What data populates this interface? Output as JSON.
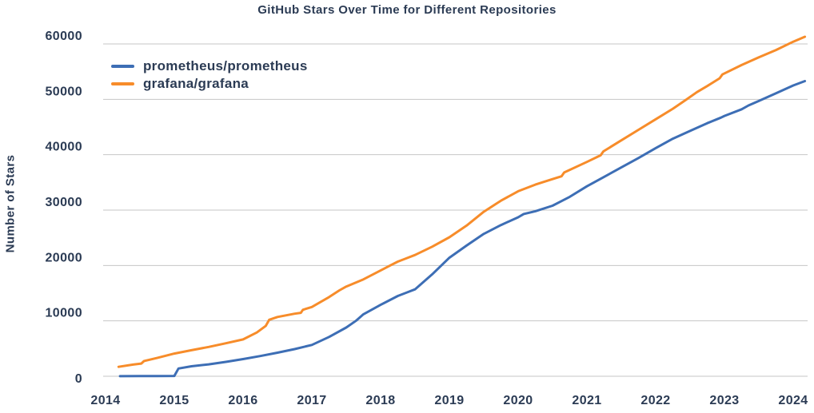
{
  "chart_data": {
    "type": "line",
    "title": "GitHub Stars Over Time for Different Repositories",
    "xlabel": "",
    "ylabel": "Number of Stars",
    "x_range": [
      2014,
      2024.2
    ],
    "y_range": [
      0,
      60000
    ],
    "xticks": [
      2014,
      2015,
      2016,
      2017,
      2018,
      2019,
      2020,
      2021,
      2022,
      2023,
      2024
    ],
    "yticks": [
      0,
      10000,
      20000,
      30000,
      40000,
      50000,
      60000
    ],
    "grid": "horizontal-only",
    "grid_color": "#c6c6c6",
    "text_color": "#2b3b54",
    "background_color": "#ffffff",
    "legend_position": "top-left-inside",
    "series": [
      {
        "name": "prometheus/prometheus",
        "color": "#3d6eb5",
        "points": [
          [
            2014.21,
            20
          ],
          [
            2014.5,
            35
          ],
          [
            2014.75,
            45
          ],
          [
            2015.0,
            60
          ],
          [
            2015.06,
            1400
          ],
          [
            2015.25,
            1800
          ],
          [
            2015.5,
            2150
          ],
          [
            2015.75,
            2600
          ],
          [
            2016.0,
            3100
          ],
          [
            2016.25,
            3650
          ],
          [
            2016.5,
            4250
          ],
          [
            2016.75,
            4900
          ],
          [
            2017.0,
            5650
          ],
          [
            2017.25,
            7100
          ],
          [
            2017.5,
            8800
          ],
          [
            2017.64,
            10000
          ],
          [
            2017.75,
            11200
          ],
          [
            2018.0,
            12900
          ],
          [
            2018.25,
            14500
          ],
          [
            2018.5,
            15700
          ],
          [
            2018.75,
            18400
          ],
          [
            2019.0,
            21400
          ],
          [
            2019.25,
            23600
          ],
          [
            2019.5,
            25700
          ],
          [
            2019.75,
            27300
          ],
          [
            2020.0,
            28700
          ],
          [
            2020.08,
            29300
          ],
          [
            2020.25,
            29800
          ],
          [
            2020.5,
            30800
          ],
          [
            2020.75,
            32400
          ],
          [
            2021.0,
            34300
          ],
          [
            2021.25,
            36000
          ],
          [
            2021.5,
            37700
          ],
          [
            2021.75,
            39400
          ],
          [
            2022.0,
            41200
          ],
          [
            2022.25,
            42900
          ],
          [
            2022.5,
            44300
          ],
          [
            2022.75,
            45700
          ],
          [
            2022.95,
            46700
          ],
          [
            2023.0,
            47000
          ],
          [
            2023.25,
            48200
          ],
          [
            2023.35,
            48900
          ],
          [
            2023.5,
            49700
          ],
          [
            2023.75,
            51100
          ],
          [
            2024.0,
            52500
          ],
          [
            2024.17,
            53300
          ]
        ]
      },
      {
        "name": "grafana/grafana",
        "color": "#f78c2a",
        "points": [
          [
            2014.19,
            1700
          ],
          [
            2014.4,
            2100
          ],
          [
            2014.52,
            2300
          ],
          [
            2014.56,
            2750
          ],
          [
            2014.75,
            3300
          ],
          [
            2015.0,
            4100
          ],
          [
            2015.25,
            4700
          ],
          [
            2015.5,
            5300
          ],
          [
            2015.75,
            5950
          ],
          [
            2016.0,
            6650
          ],
          [
            2016.2,
            7900
          ],
          [
            2016.33,
            9100
          ],
          [
            2016.38,
            10200
          ],
          [
            2016.5,
            10700
          ],
          [
            2016.75,
            11300
          ],
          [
            2016.84,
            11450
          ],
          [
            2016.87,
            12000
          ],
          [
            2017.0,
            12500
          ],
          [
            2017.25,
            14300
          ],
          [
            2017.4,
            15500
          ],
          [
            2017.5,
            16200
          ],
          [
            2017.75,
            17500
          ],
          [
            2018.0,
            19100
          ],
          [
            2018.14,
            20000
          ],
          [
            2018.25,
            20700
          ],
          [
            2018.5,
            21900
          ],
          [
            2018.75,
            23400
          ],
          [
            2019.0,
            25100
          ],
          [
            2019.25,
            27200
          ],
          [
            2019.5,
            29700
          ],
          [
            2019.75,
            31700
          ],
          [
            2020.0,
            33400
          ],
          [
            2020.25,
            34600
          ],
          [
            2020.5,
            35600
          ],
          [
            2020.63,
            36100
          ],
          [
            2020.67,
            36800
          ],
          [
            2021.0,
            38700
          ],
          [
            2021.2,
            39900
          ],
          [
            2021.24,
            40600
          ],
          [
            2021.5,
            42600
          ],
          [
            2021.75,
            44500
          ],
          [
            2022.0,
            46400
          ],
          [
            2022.25,
            48300
          ],
          [
            2022.45,
            50000
          ],
          [
            2022.6,
            51300
          ],
          [
            2022.75,
            52400
          ],
          [
            2022.93,
            53800
          ],
          [
            2022.97,
            54500
          ],
          [
            2023.25,
            56200
          ],
          [
            2023.5,
            57600
          ],
          [
            2023.75,
            58900
          ],
          [
            2024.0,
            60400
          ],
          [
            2024.17,
            61300
          ]
        ]
      }
    ]
  }
}
